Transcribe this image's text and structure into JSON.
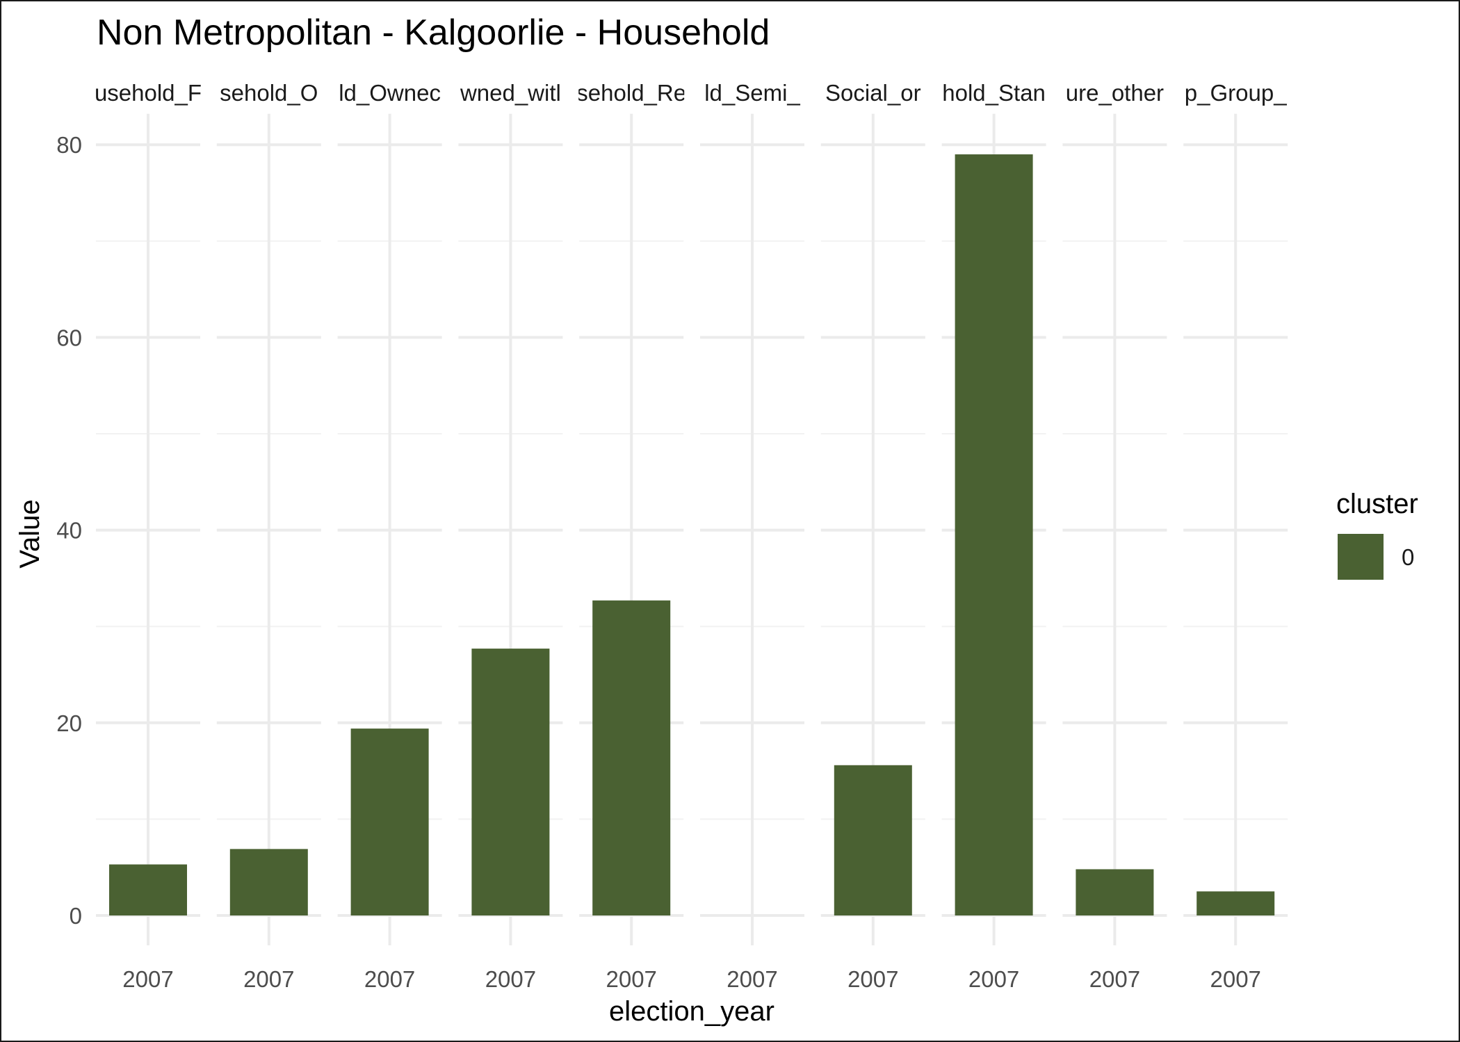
{
  "chart_data": {
    "type": "bar",
    "title": "Non Metropolitan - Kalgoorlie - Household",
    "xlabel": "election_year",
    "ylabel": "Value",
    "ylim": [
      0,
      83
    ],
    "y_ticks": [
      0,
      20,
      40,
      60,
      80
    ],
    "grid": true,
    "facets": [
      {
        "strip": "usehold_F",
        "x": "2007",
        "value": 5.3
      },
      {
        "strip": "sehold_O",
        "x": "2007",
        "value": 6.9
      },
      {
        "strip": "ld_Ownec",
        "x": "2007",
        "value": 19.4
      },
      {
        "strip": "wned_witl",
        "x": "2007",
        "value": 27.7
      },
      {
        "strip": "sehold_Re",
        "x": "2007",
        "value": 32.7
      },
      {
        "strip": "ld_Semi_",
        "x": "2007",
        "value": 0
      },
      {
        "strip": "Social_or",
        "x": "2007",
        "value": 15.6
      },
      {
        "strip": "hold_Stan",
        "x": "2007",
        "value": 79.0
      },
      {
        "strip": "ure_other",
        "x": "2007",
        "value": 4.8
      },
      {
        "strip": "p_Group_",
        "x": "2007",
        "value": 2.5
      }
    ],
    "legend": {
      "title": "cluster",
      "items": [
        {
          "label": "0",
          "color": "#4a6132"
        }
      ],
      "position": "right"
    },
    "bar_color": "#4a6132"
  }
}
